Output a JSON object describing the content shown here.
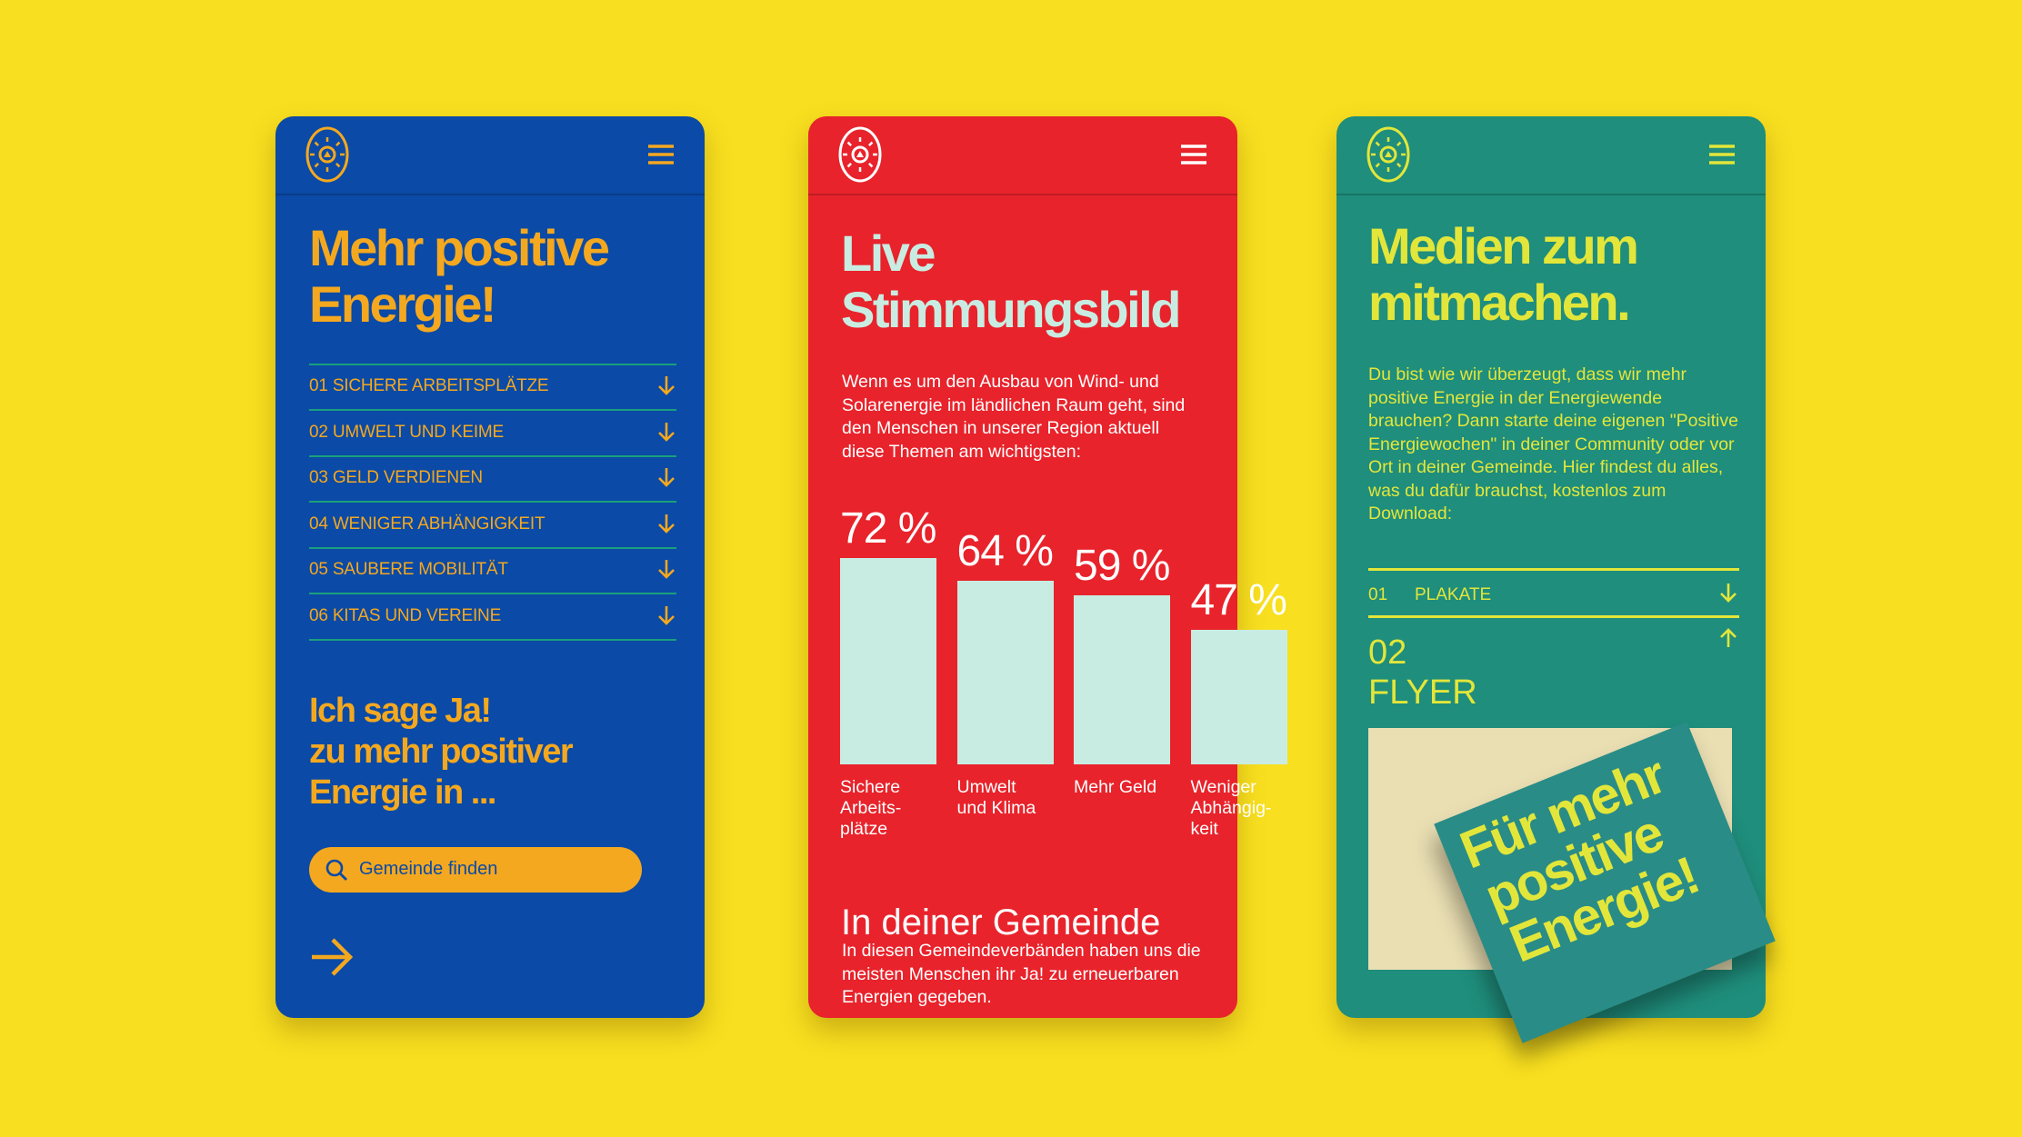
{
  "screens": [
    {
      "title_lines": [
        "Mehr positive",
        "Energie!"
      ],
      "topics": [
        "01 SICHERE ARBEITSPLÄTZE",
        "02 UMWELT UND KEIME",
        "03 GELD VERDIENEN",
        "04 WENIGER ABHÄNGIGKEIT",
        "05 SAUBERE MOBILITÄT",
        "06 KITAS UND VEREINE"
      ],
      "cta_lines": [
        "Ich sage Ja!",
        "zu mehr positiver",
        "Energie in ..."
      ],
      "search_placeholder": "Gemeinde finden"
    },
    {
      "title_lines": [
        "Live",
        "Stimmungsbild"
      ],
      "intro": "Wenn es um den Ausbau von Wind- und Solarenergie im ländlichen Raum geht, sind den Menschen in unserer Region aktuell diese Themen am wichtigsten:",
      "chart": {
        "type": "bar",
        "categories": [
          [
            "Sichere",
            "Arbeits-",
            "plätze"
          ],
          [
            "Umwelt",
            "und Klima"
          ],
          [
            "Mehr Geld"
          ],
          [
            "Weniger",
            "Abhängig-",
            "keit"
          ]
        ],
        "values": [
          72,
          64,
          59,
          47
        ],
        "value_labels": [
          "72 %",
          "64 %",
          "59 %",
          "47 %"
        ]
      },
      "section_title": "In deiner Gemeinde",
      "section_text": "In diesen Gemeindeverbänden haben uns die meisten Menschen ihr Ja! zu erneuerbaren Energien gegeben."
    },
    {
      "title_lines": [
        "Medien zum",
        "mitmachen."
      ],
      "intro": "Du bist wie wir überzeugt, dass wir mehr positive Energie in der Energiewende brauchen? Dann starte deine eigenen \"Positive Energiewochen\" in deiner Community oder vor Ort in deiner Gemeinde. Hier findest du alles, was du dafür brauchst, kostenlos zum Download:",
      "downloads": [
        {
          "number": "01",
          "label": "PLAKATE"
        },
        {
          "number": "02",
          "label": "FLYER"
        }
      ],
      "flyer_text_lines": [
        "Für mehr",
        "positive",
        "Energie!"
      ]
    }
  ]
}
